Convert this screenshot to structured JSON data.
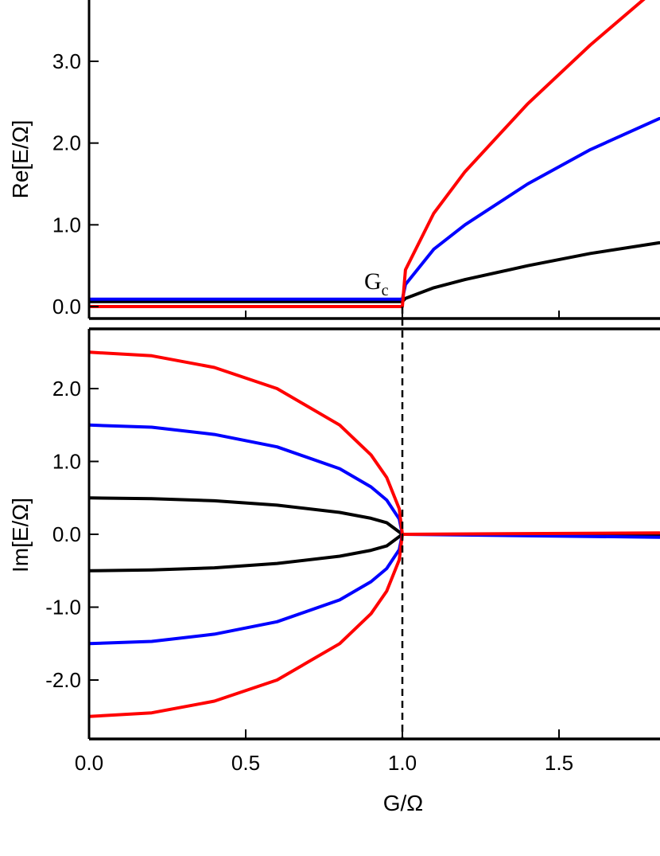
{
  "chart_data": [
    {
      "type": "line",
      "panel": "top",
      "ylabel": "Re[E/Ω]",
      "xlim": [
        0,
        1.82
      ],
      "ylim": [
        -0.1,
        3.6
      ],
      "yticks": [
        0.0,
        1.0,
        2.0,
        3.0
      ],
      "ytick_labels": [
        "0.0",
        "1.0",
        "2.0",
        "3.0"
      ],
      "annotation": {
        "text": "G",
        "subscript": "c",
        "x": 1.0,
        "y": 0.05
      },
      "series": [
        {
          "color": "#000000",
          "values": [
            [
              0.0,
              0.06
            ],
            [
              0.5,
              0.06
            ],
            [
              1.0,
              0.06
            ],
            [
              1.01,
              0.1
            ],
            [
              1.1,
              0.23
            ],
            [
              1.2,
              0.33
            ],
            [
              1.4,
              0.5
            ],
            [
              1.6,
              0.65
            ],
            [
              1.82,
              0.78
            ]
          ]
        },
        {
          "color": "#0000ff",
          "values": [
            [
              0.0,
              0.09
            ],
            [
              0.5,
              0.09
            ],
            [
              1.0,
              0.09
            ],
            [
              1.01,
              0.27
            ],
            [
              1.1,
              0.7
            ],
            [
              1.2,
              1.0
            ],
            [
              1.4,
              1.5
            ],
            [
              1.6,
              1.92
            ],
            [
              1.82,
              2.3
            ]
          ]
        },
        {
          "color": "#ff0000",
          "values": [
            [
              0.0,
              0.0
            ],
            [
              0.5,
              0.0
            ],
            [
              1.0,
              0.0
            ],
            [
              1.01,
              0.45
            ],
            [
              1.1,
              1.14
            ],
            [
              1.2,
              1.65
            ],
            [
              1.4,
              2.48
            ],
            [
              1.6,
              3.2
            ],
            [
              1.82,
              3.92
            ]
          ]
        }
      ]
    },
    {
      "type": "line",
      "panel": "bottom",
      "xlabel": "G/Ω",
      "ylabel": "Im[E/Ω]",
      "xlim": [
        0,
        1.82
      ],
      "ylim": [
        -2.8,
        2.75
      ],
      "xticks": [
        0.0,
        0.5,
        1.0,
        1.5
      ],
      "xtick_labels": [
        "0.0",
        "0.5",
        "1.0",
        "1.5"
      ],
      "yticks": [
        -2.0,
        -1.0,
        0.0,
        1.0,
        2.0
      ],
      "ytick_labels": [
        "-2.0",
        "-1.0",
        "0.0",
        "1.0",
        "2.0"
      ],
      "reference_line": {
        "x": 1.0,
        "style": "dashed"
      },
      "series": [
        {
          "color": "#000000",
          "values": [
            [
              0.0,
              0.5
            ],
            [
              0.2,
              0.49
            ],
            [
              0.4,
              0.46
            ],
            [
              0.6,
              0.4
            ],
            [
              0.8,
              0.3
            ],
            [
              0.9,
              0.22
            ],
            [
              0.95,
              0.16
            ],
            [
              1.0,
              0.0
            ],
            [
              1.82,
              0.0
            ]
          ]
        },
        {
          "color": "#000000",
          "values": [
            [
              0.0,
              -0.5
            ],
            [
              0.2,
              -0.49
            ],
            [
              0.4,
              -0.46
            ],
            [
              0.6,
              -0.4
            ],
            [
              0.8,
              -0.3
            ],
            [
              0.9,
              -0.22
            ],
            [
              0.95,
              -0.16
            ],
            [
              1.0,
              0.0
            ]
          ]
        },
        {
          "color": "#0000ff",
          "values": [
            [
              0.0,
              1.5
            ],
            [
              0.2,
              1.47
            ],
            [
              0.4,
              1.37
            ],
            [
              0.6,
              1.2
            ],
            [
              0.8,
              0.9
            ],
            [
              0.9,
              0.65
            ],
            [
              0.95,
              0.47
            ],
            [
              0.99,
              0.21
            ],
            [
              1.0,
              0.0
            ],
            [
              1.82,
              -0.04
            ]
          ]
        },
        {
          "color": "#0000ff",
          "values": [
            [
              0.0,
              -1.5
            ],
            [
              0.2,
              -1.47
            ],
            [
              0.4,
              -1.37
            ],
            [
              0.6,
              -1.2
            ],
            [
              0.8,
              -0.9
            ],
            [
              0.9,
              -0.65
            ],
            [
              0.95,
              -0.47
            ],
            [
              0.99,
              -0.21
            ],
            [
              1.0,
              0.0
            ]
          ]
        },
        {
          "color": "#ff0000",
          "values": [
            [
              0.0,
              2.5
            ],
            [
              0.2,
              2.45
            ],
            [
              0.4,
              2.29
            ],
            [
              0.6,
              2.0
            ],
            [
              0.8,
              1.5
            ],
            [
              0.9,
              1.09
            ],
            [
              0.95,
              0.78
            ],
            [
              0.99,
              0.35
            ],
            [
              1.0,
              0.0
            ],
            [
              1.82,
              0.02
            ]
          ]
        },
        {
          "color": "#ff0000",
          "values": [
            [
              0.0,
              -2.5
            ],
            [
              0.2,
              -2.45
            ],
            [
              0.4,
              -2.29
            ],
            [
              0.6,
              -2.0
            ],
            [
              0.8,
              -1.5
            ],
            [
              0.9,
              -1.09
            ],
            [
              0.95,
              -0.78
            ],
            [
              0.99,
              -0.35
            ],
            [
              1.0,
              0.0
            ]
          ]
        }
      ]
    }
  ]
}
